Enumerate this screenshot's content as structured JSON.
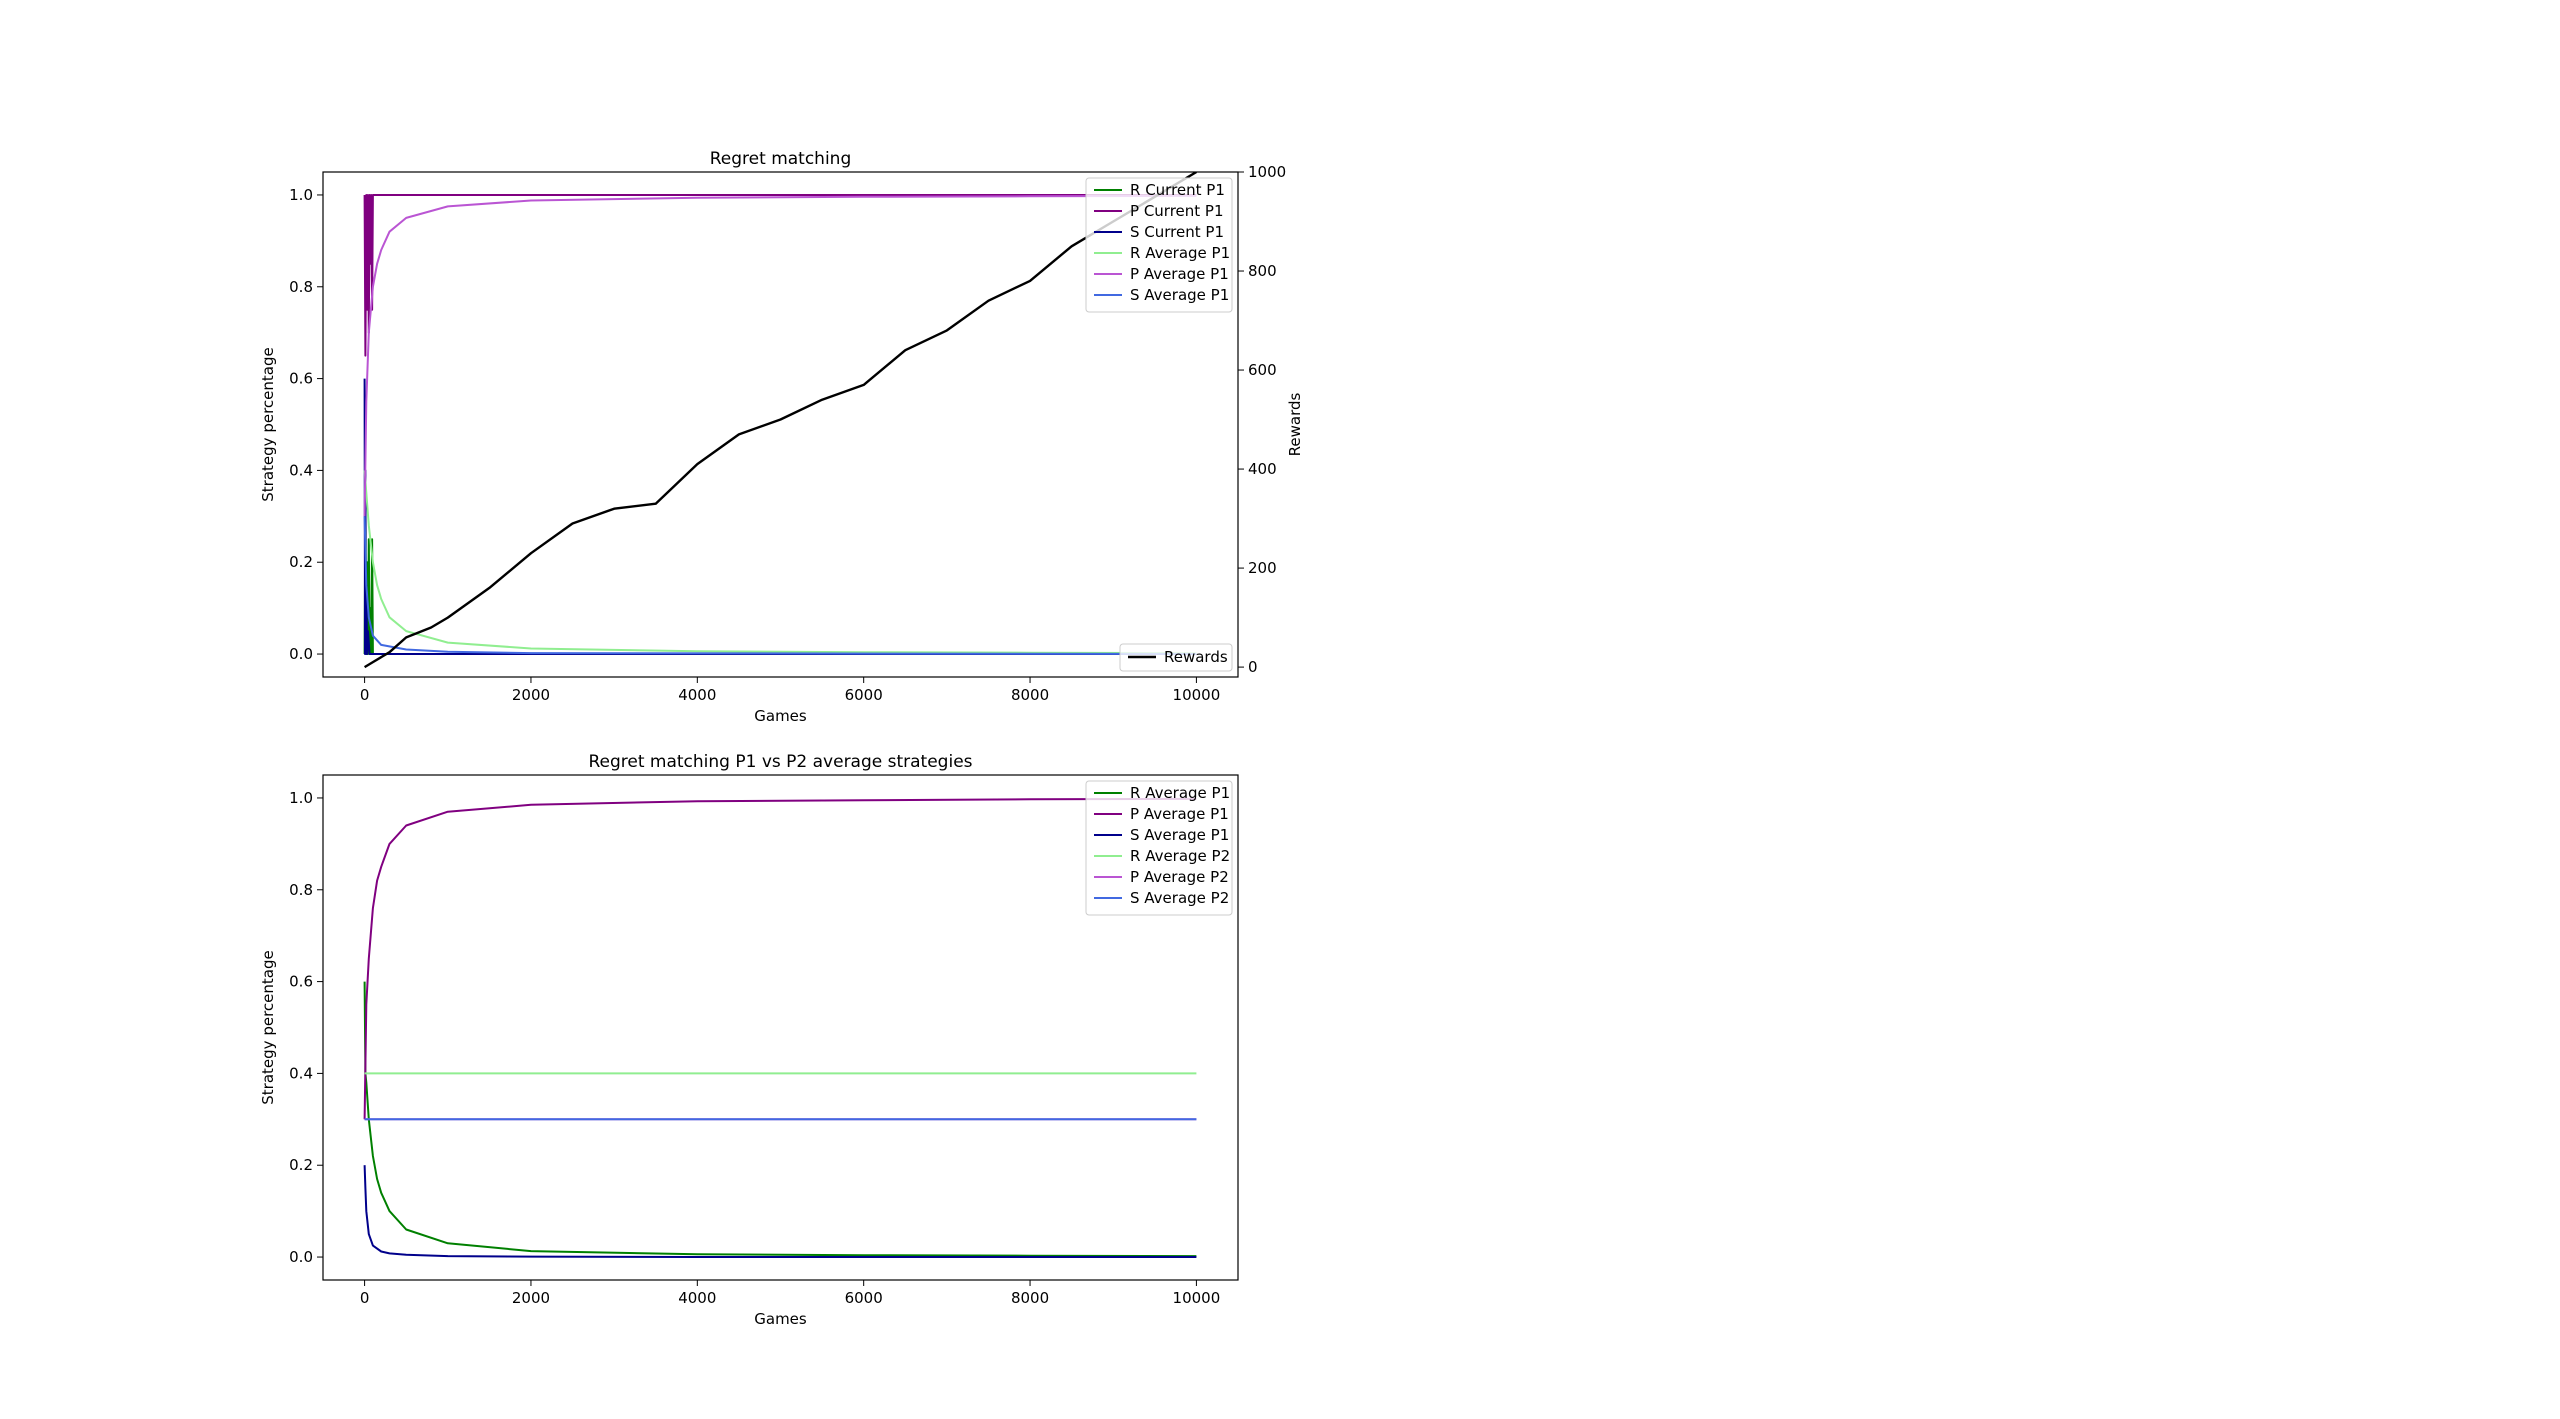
{
  "chart_data": [
    {
      "type": "line",
      "title": "Regret matching",
      "xlabel": "Games",
      "ylabel": "Strategy percentage",
      "y2label": "Rewards",
      "xlim": [
        -500,
        10500
      ],
      "ylim": [
        -0.05,
        1.05
      ],
      "y2lim": [
        -20,
        1000
      ],
      "xticks": [
        0,
        2000,
        4000,
        6000,
        8000,
        10000
      ],
      "yticks": [
        0.0,
        0.2,
        0.4,
        0.6,
        0.8,
        1.0
      ],
      "y2ticks": [
        0,
        200,
        400,
        600,
        800,
        1000
      ],
      "legend_position": "top-right",
      "legend2_position": "bottom-right",
      "series": [
        {
          "name": "R Current P1",
          "color": "#008000",
          "axis": "left",
          "x": [
            0,
            10,
            20,
            30,
            40,
            50,
            60,
            70,
            80,
            90,
            100,
            120,
            150,
            200,
            10000
          ],
          "y": [
            0.0,
            0.35,
            0.0,
            0.2,
            0.0,
            0.25,
            0.0,
            0.1,
            0.0,
            0.25,
            0.0,
            0.0,
            0.0,
            0.0,
            0.0
          ]
        },
        {
          "name": "P Current P1",
          "color": "#800080",
          "axis": "left",
          "x": [
            0,
            10,
            20,
            30,
            40,
            50,
            60,
            70,
            80,
            90,
            100,
            120,
            150,
            10000
          ],
          "y": [
            1.0,
            0.65,
            1.0,
            0.75,
            1.0,
            0.7,
            1.0,
            0.85,
            1.0,
            0.75,
            1.0,
            1.0,
            1.0,
            1.0
          ]
        },
        {
          "name": "S Current P1",
          "color": "#00008b",
          "axis": "left",
          "x": [
            0,
            5,
            10,
            15,
            20,
            30,
            40,
            60,
            10000
          ],
          "y": [
            0.6,
            0.0,
            0.4,
            0.0,
            0.15,
            0.0,
            0.05,
            0.0,
            0.0
          ]
        },
        {
          "name": "R Average P1",
          "color": "#90ee90",
          "axis": "left",
          "x": [
            0,
            50,
            100,
            150,
            200,
            300,
            500,
            1000,
            2000,
            4000,
            6000,
            8000,
            10000
          ],
          "y": [
            0.4,
            0.28,
            0.2,
            0.15,
            0.12,
            0.08,
            0.05,
            0.025,
            0.012,
            0.006,
            0.004,
            0.003,
            0.002
          ]
        },
        {
          "name": "P Average P1",
          "color": "#ba55d3",
          "axis": "left",
          "x": [
            0,
            20,
            50,
            100,
            150,
            200,
            300,
            500,
            1000,
            2000,
            4000,
            6000,
            8000,
            10000
          ],
          "y": [
            0.3,
            0.55,
            0.7,
            0.8,
            0.85,
            0.88,
            0.92,
            0.95,
            0.975,
            0.988,
            0.994,
            0.996,
            0.997,
            0.998
          ]
        },
        {
          "name": "S Average P1",
          "color": "#4169e1",
          "axis": "left",
          "x": [
            0,
            20,
            50,
            100,
            200,
            500,
            1000,
            2000,
            10000
          ],
          "y": [
            0.3,
            0.15,
            0.08,
            0.04,
            0.02,
            0.01,
            0.005,
            0.002,
            0.0
          ]
        },
        {
          "name": "Rewards",
          "color": "#000000",
          "axis": "right",
          "x": [
            0,
            100,
            300,
            500,
            800,
            1000,
            1500,
            2000,
            2500,
            3000,
            3500,
            4000,
            4500,
            5000,
            5500,
            6000,
            6500,
            7000,
            7500,
            8000,
            8500,
            9000,
            9500,
            10000
          ],
          "y": [
            0,
            10,
            30,
            60,
            80,
            100,
            160,
            230,
            290,
            320,
            330,
            410,
            470,
            500,
            540,
            570,
            640,
            680,
            740,
            780,
            850,
            900,
            950,
            1000
          ]
        }
      ]
    },
    {
      "type": "line",
      "title": "Regret matching P1 vs P2 average strategies",
      "xlabel": "Games",
      "ylabel": "Strategy percentage",
      "xlim": [
        -500,
        10500
      ],
      "ylim": [
        -0.05,
        1.05
      ],
      "xticks": [
        0,
        2000,
        4000,
        6000,
        8000,
        10000
      ],
      "yticks": [
        0.0,
        0.2,
        0.4,
        0.6,
        0.8,
        1.0
      ],
      "legend_position": "top-right",
      "series": [
        {
          "name": "R Average P1",
          "color": "#008000",
          "x": [
            0,
            10,
            20,
            50,
            100,
            150,
            200,
            300,
            500,
            1000,
            2000,
            4000,
            6000,
            8000,
            10000
          ],
          "y": [
            0.6,
            0.4,
            0.38,
            0.3,
            0.22,
            0.17,
            0.14,
            0.1,
            0.06,
            0.03,
            0.013,
            0.006,
            0.004,
            0.003,
            0.002
          ]
        },
        {
          "name": "P Average P1",
          "color": "#800080",
          "x": [
            0,
            20,
            50,
            100,
            150,
            200,
            300,
            500,
            1000,
            2000,
            4000,
            6000,
            8000,
            10000
          ],
          "y": [
            0.3,
            0.55,
            0.65,
            0.76,
            0.82,
            0.85,
            0.9,
            0.94,
            0.97,
            0.985,
            0.993,
            0.995,
            0.997,
            0.998
          ]
        },
        {
          "name": "S Average P1",
          "color": "#00008b",
          "x": [
            0,
            10,
            20,
            50,
            100,
            200,
            300,
            500,
            1000,
            2000,
            4000,
            10000
          ],
          "y": [
            0.2,
            0.15,
            0.1,
            0.05,
            0.025,
            0.012,
            0.008,
            0.005,
            0.002,
            0.001,
            0.0,
            0.0
          ]
        },
        {
          "name": "R Average P2",
          "color": "#90ee90",
          "x": [
            0,
            10000
          ],
          "y": [
            0.4,
            0.4
          ]
        },
        {
          "name": "P Average P2",
          "color": "#ba55d3",
          "x": [
            0,
            10000
          ],
          "y": [
            0.3,
            0.3
          ]
        },
        {
          "name": "S Average P2",
          "color": "#4169e1",
          "x": [
            0,
            10000
          ],
          "y": [
            0.3,
            0.3
          ]
        }
      ]
    }
  ]
}
